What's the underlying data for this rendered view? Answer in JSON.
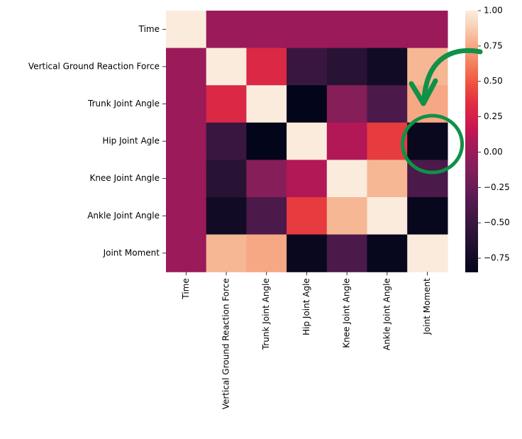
{
  "chart_data": {
    "type": "heatmap",
    "title": "",
    "xlabel": "",
    "ylabel": "",
    "categories": [
      "Time",
      "Vertical Ground Reaction Force",
      "Trunk Joint Angle",
      "Hip Joint Agle",
      "Knee Joint Angle",
      "Ankle Joint Angle",
      "Joint Moment"
    ],
    "matrix": [
      [
        1.0,
        0.0,
        0.0,
        0.0,
        0.0,
        0.0,
        0.0
      ],
      [
        0.0,
        1.0,
        0.3,
        -0.5,
        -0.6,
        -0.75,
        0.8
      ],
      [
        0.0,
        0.3,
        1.0,
        -0.85,
        -0.1,
        -0.4,
        0.75
      ],
      [
        0.0,
        -0.5,
        -0.85,
        1.0,
        0.1,
        0.4,
        -0.8
      ],
      [
        0.0,
        -0.6,
        -0.1,
        0.1,
        1.0,
        0.8,
        -0.4
      ],
      [
        0.0,
        -0.75,
        -0.4,
        0.4,
        0.8,
        1.0,
        -0.82
      ],
      [
        0.0,
        0.8,
        0.75,
        -0.8,
        -0.4,
        -0.82,
        1.0
      ]
    ],
    "colorbar": {
      "range": [
        -0.85,
        1.0
      ],
      "ticks": [
        1.0,
        0.75,
        0.5,
        0.25,
        0.0,
        -0.25,
        -0.5,
        -0.75
      ],
      "tick_labels": [
        "1.00",
        "0.75",
        "0.50",
        "0.25",
        "0.00",
        "−0.25",
        "−0.50",
        "−0.75"
      ]
    },
    "colormap": "rocket",
    "annotation": {
      "shape": "circle-with-arrow",
      "color": "#0f9148",
      "target_row": "Hip Joint Agle",
      "target_col": "Joint Moment"
    }
  }
}
